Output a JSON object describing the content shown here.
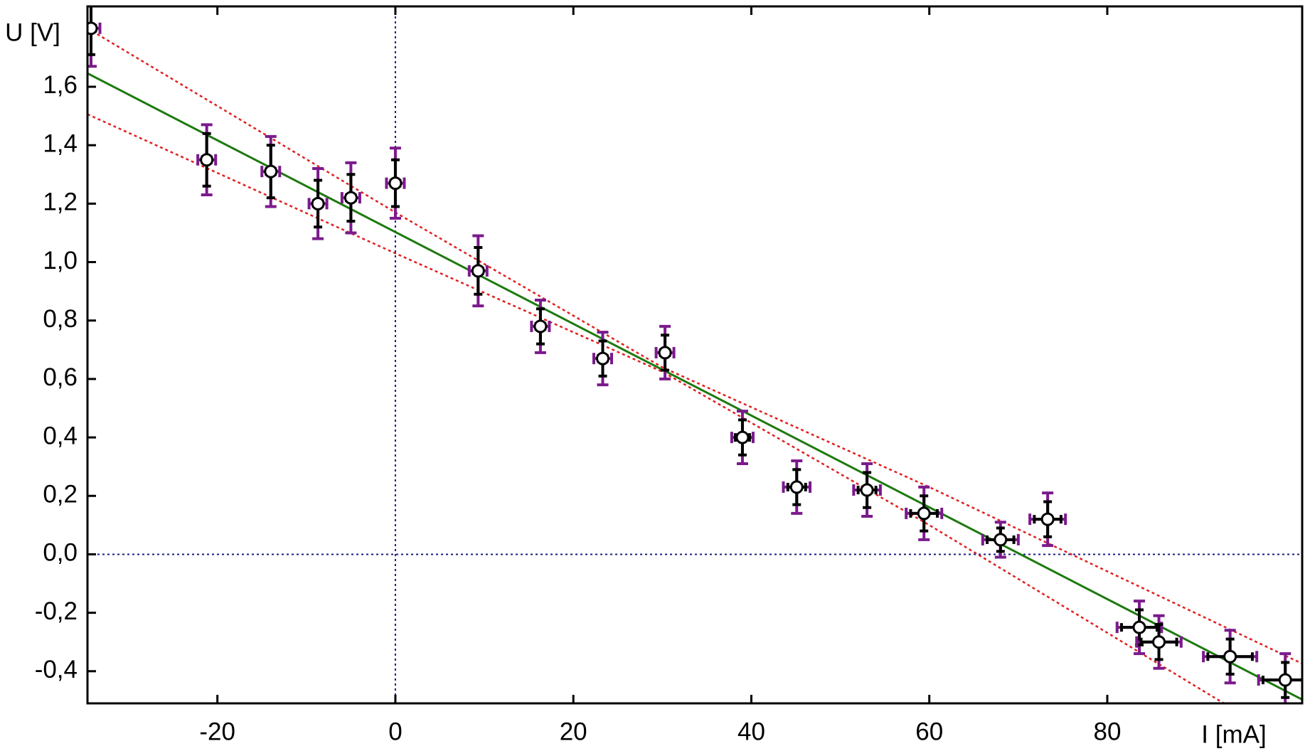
{
  "chart_data": {
    "type": "scatter",
    "x_label": "I  [mA]",
    "y_label": "U  [V]",
    "xlim": [
      -34.6,
      101.9
    ],
    "ylim": [
      -0.51,
      1.875
    ],
    "xticks": [
      -20,
      0,
      20,
      40,
      60,
      80
    ],
    "yticks": [
      {
        "value": -0.4,
        "label": "-0,4"
      },
      {
        "value": -0.2,
        "label": "-0,2"
      },
      {
        "value": 0,
        "label": "0,0"
      },
      {
        "value": 0.2,
        "label": "0,2"
      },
      {
        "value": 0.4,
        "label": "0,4"
      },
      {
        "value": 0.6,
        "label": "0,6"
      },
      {
        "value": 0.8,
        "label": "0,8"
      },
      {
        "value": 1.0,
        "label": "1,0"
      },
      {
        "value": 1.2,
        "label": "1,2"
      },
      {
        "value": 1.4,
        "label": "1,4"
      },
      {
        "value": 1.6,
        "label": "1,6"
      }
    ],
    "points": {
      "color": "#000000",
      "error_color": "#7b1a8c",
      "x": [
        -34.2,
        -21.2,
        -14.0,
        -8.7,
        -5.0,
        0.0,
        9.3,
        16.3,
        23.3,
        30.3,
        39.0,
        45.1,
        53.0,
        59.4,
        68.0,
        73.3,
        83.6,
        85.8,
        93.8,
        100.0
      ],
      "y": [
        1.8,
        1.35,
        1.31,
        1.2,
        1.22,
        1.27,
        0.97,
        0.78,
        0.67,
        0.69,
        0.4,
        0.23,
        0.22,
        0.14,
        0.05,
        0.12,
        -0.25,
        -0.3,
        -0.35,
        -0.43
      ],
      "xerr": [
        0.5,
        0.5,
        0.5,
        0.5,
        0.5,
        0.5,
        0.5,
        0.5,
        0.5,
        0.5,
        0.8,
        1.0,
        1.0,
        1.5,
        1.5,
        1.5,
        2.0,
        2.0,
        2.5,
        2.5
      ],
      "xerr_total": [
        1.0,
        1.0,
        1.0,
        1.0,
        1.0,
        1.0,
        1.0,
        1.0,
        1.0,
        1.0,
        1.2,
        1.5,
        1.5,
        2.0,
        2.0,
        2.0,
        2.5,
        2.5,
        3.0,
        3.0
      ],
      "yerr": [
        0.09,
        0.09,
        0.09,
        0.08,
        0.08,
        0.08,
        0.08,
        0.06,
        0.06,
        0.06,
        0.06,
        0.06,
        0.06,
        0.06,
        0.04,
        0.06,
        0.06,
        0.06,
        0.06,
        0.06
      ],
      "yerr_total": [
        0.13,
        0.12,
        0.12,
        0.12,
        0.12,
        0.12,
        0.12,
        0.09,
        0.09,
        0.09,
        0.09,
        0.09,
        0.09,
        0.09,
        0.06,
        0.09,
        0.09,
        0.09,
        0.09,
        0.09
      ]
    },
    "fit": {
      "color": "#1e7a10",
      "x": [
        -34.6,
        101.9
      ],
      "y": [
        1.646,
        -0.497
      ]
    },
    "band_upper": {
      "color": "#e02020",
      "x": [
        -34.6,
        0,
        30,
        60,
        101.9
      ],
      "y": [
        1.8,
        1.17,
        0.64,
        0.23,
        -0.374
      ]
    },
    "band_lower": {
      "color": "#e02020",
      "x": [
        -34.6,
        0,
        30,
        60,
        93.1
      ],
      "y": [
        1.506,
        1.03,
        0.625,
        0.1,
        -0.51
      ]
    }
  }
}
